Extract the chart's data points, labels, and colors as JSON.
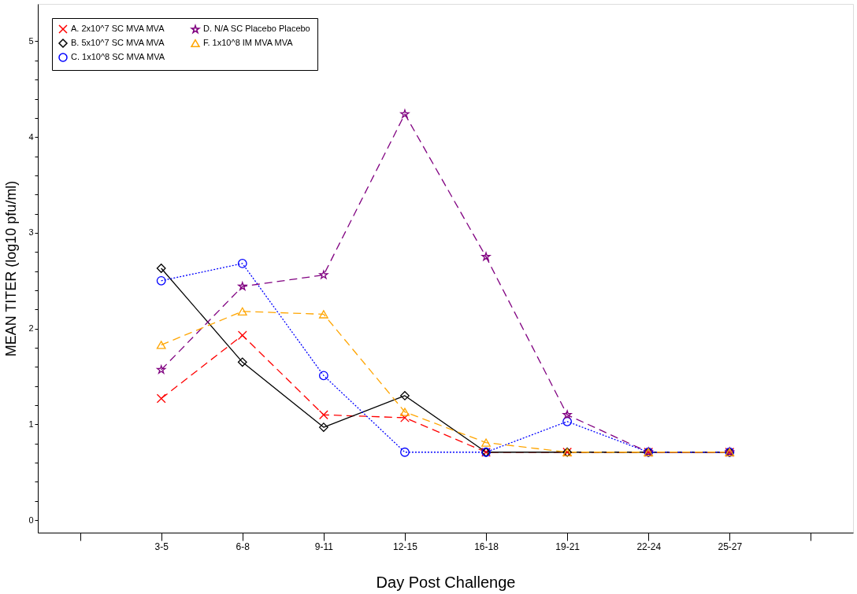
{
  "chart_data": {
    "type": "line",
    "xlabel": "Day Post Challenge",
    "ylabel": "MEAN TITER (log10 pfu/ml)",
    "categories": [
      null,
      "3-5",
      "6-8",
      "9-11",
      "12-15",
      "16-18",
      "19-21",
      "22-24",
      "25-27",
      null
    ],
    "ylim": [
      -0.13,
      5.39
    ],
    "yticks": [
      0,
      {
        "value": 0.2,
        "label": null
      },
      {
        "value": 0.4,
        "label": null
      },
      {
        "value": 0.6,
        "label": null
      },
      {
        "value": 0.8,
        "label": null
      },
      1,
      {
        "value": 1.2,
        "label": null
      },
      {
        "value": 1.4,
        "label": null
      },
      {
        "value": 1.6,
        "label": null
      },
      {
        "value": 1.8,
        "label": null
      },
      2,
      {
        "value": 2.2,
        "label": null
      },
      {
        "value": 2.4,
        "label": null
      },
      {
        "value": 2.6,
        "label": null
      },
      {
        "value": 2.8,
        "label": null
      },
      3,
      {
        "value": 3.2,
        "label": null
      },
      {
        "value": 3.4,
        "label": null
      },
      {
        "value": 3.6,
        "label": null
      },
      {
        "value": 3.8,
        "label": null
      },
      4,
      {
        "value": 4.2,
        "label": null
      },
      {
        "value": 4.4,
        "label": null
      },
      {
        "value": 4.6,
        "label": null
      },
      {
        "value": 4.8,
        "label": null
      },
      5
    ],
    "grid": false,
    "legend": "top left",
    "series": [
      {
        "name": "A. 2x10^7 SC MVA MVA",
        "color": "#ff0000",
        "marker": "cross",
        "line_style": "dashed",
        "values": [
          null,
          1.27,
          1.93,
          1.1,
          1.07,
          0.71,
          0.71,
          0.71,
          0.71,
          null
        ]
      },
      {
        "name": "B. 5x10^7 SC MVA MVA",
        "color": "#000000",
        "marker": "diamond",
        "line_style": "solid",
        "values": [
          null,
          2.63,
          1.65,
          0.97,
          1.3,
          0.71,
          0.71,
          0.71,
          0.71,
          null
        ]
      },
      {
        "name": "C. 1x10^8 SC MVA MVA",
        "color": "#0000ff",
        "marker": "circle",
        "line_style": "dotted",
        "values": [
          null,
          2.5,
          2.68,
          1.51,
          0.71,
          0.71,
          1.03,
          0.71,
          0.71,
          null
        ]
      },
      {
        "name": "D. N/A SC Placebo Placebo",
        "color": "#800080",
        "marker": "star",
        "line_style": "dashed",
        "values": [
          null,
          1.57,
          2.44,
          2.56,
          4.24,
          2.75,
          1.1,
          0.71,
          0.71,
          null
        ]
      },
      {
        "name": "F. 1x10^8 IM MVA MVA",
        "color": "#ffa500",
        "marker": "triangle",
        "line_style": "dashed",
        "values": [
          null,
          1.83,
          2.18,
          2.15,
          1.13,
          0.81,
          0.71,
          0.71,
          0.71,
          null
        ]
      }
    ]
  }
}
